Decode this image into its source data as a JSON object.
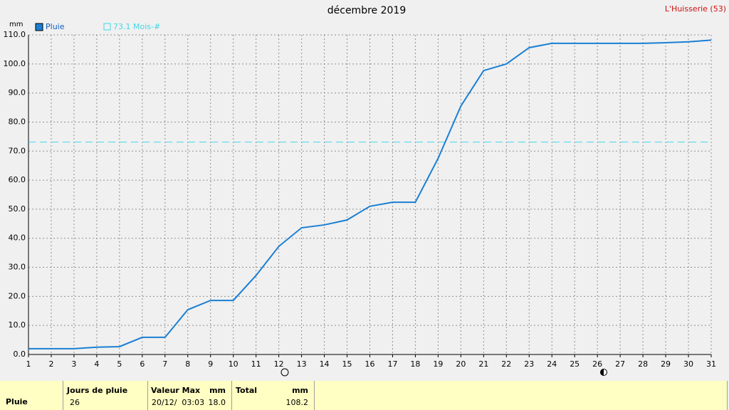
{
  "chart_data": {
    "type": "line",
    "title": "décembre 2019",
    "station": "L'Huisserie (53)",
    "y_unit": "mm",
    "x": [
      1,
      2,
      3,
      4,
      5,
      6,
      7,
      8,
      9,
      10,
      11,
      12,
      13,
      14,
      15,
      16,
      17,
      18,
      19,
      20,
      21,
      22,
      23,
      24,
      25,
      26,
      27,
      28,
      29,
      30,
      31
    ],
    "xlim": [
      1,
      31
    ],
    "xticks": [
      1,
      2,
      3,
      4,
      5,
      6,
      7,
      8,
      9,
      10,
      11,
      12,
      13,
      14,
      15,
      16,
      17,
      18,
      19,
      20,
      21,
      22,
      23,
      24,
      25,
      26,
      27,
      28,
      29,
      30,
      31
    ],
    "series": [
      {
        "name": "Pluie",
        "color": "#1a7fd4",
        "values": [
          2.0,
          2.0,
          2.0,
          2.5,
          2.7,
          5.9,
          5.9,
          15.4,
          18.6,
          18.6,
          27.2,
          37.2,
          43.6,
          44.6,
          46.3,
          51.0,
          52.4,
          52.4,
          67.5,
          85.5,
          97.7,
          100.0,
          105.6,
          107.1,
          107.1,
          107.1,
          107.1,
          107.1,
          107.3,
          107.6,
          108.2
        ]
      }
    ],
    "reference_line": {
      "value": 73.1,
      "label": "73.1 Mois-#",
      "color": "#40d8e8"
    },
    "ylim": [
      0,
      110
    ],
    "yticks": [
      {
        "value": 0,
        "label": "0.0"
      },
      {
        "value": 10,
        "label": "10.0"
      },
      {
        "value": 20,
        "label": "20.0"
      },
      {
        "value": 30,
        "label": "30.0"
      },
      {
        "value": 40,
        "label": "40.0"
      },
      {
        "value": 50,
        "label": "50.0"
      },
      {
        "value": 60,
        "label": "60.0"
      },
      {
        "value": 70,
        "label": "70.0"
      },
      {
        "value": 80,
        "label": "80.0"
      },
      {
        "value": 90,
        "label": "90.0"
      },
      {
        "value": 100,
        "label": "100.0"
      },
      {
        "value": 110,
        "label": "110.0"
      }
    ],
    "grid": true
  },
  "table": {
    "row_label": "Pluie",
    "columns": [
      {
        "header": "Jours de pluie",
        "value": "26"
      },
      {
        "header": "Valeur Max",
        "unit": "mm",
        "date": "20/12/  03:03",
        "value": "18.0"
      },
      {
        "header": "Total",
        "unit": "mm",
        "value": "108.2"
      }
    ]
  }
}
